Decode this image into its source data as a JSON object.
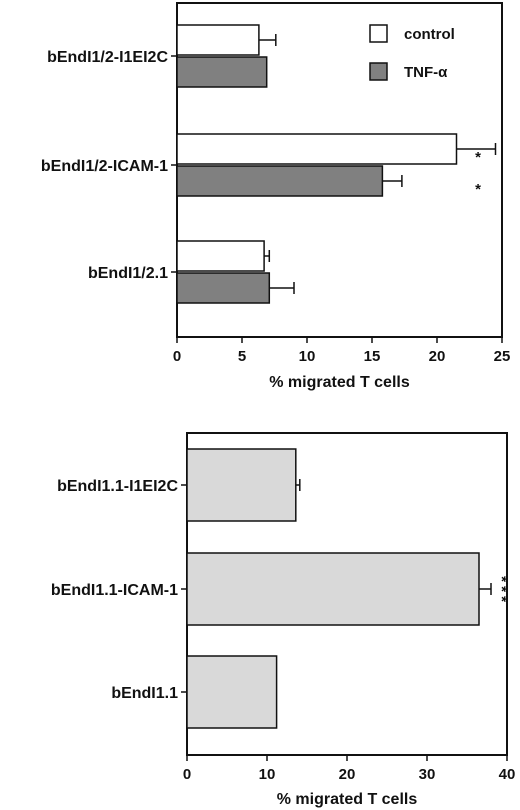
{
  "chart_data": [
    {
      "type": "bar",
      "orientation": "horizontal",
      "categories": [
        "bEndI1/2-I1EI2C",
        "bEndI1/2-ICAM-1",
        "bEndI1/2.1"
      ],
      "series": [
        {
          "name": "control",
          "values": [
            6.3,
            21.5,
            6.7
          ],
          "errors": [
            1.3,
            3.0,
            0.4
          ],
          "color": "#ffffff"
        },
        {
          "name": "TNF-α",
          "values": [
            6.9,
            15.8,
            7.1
          ],
          "errors": [
            0.0,
            1.5,
            1.9
          ],
          "color": "#808080"
        }
      ],
      "significance": [
        {
          "category": "bEndI1/2-ICAM-1",
          "series": "control",
          "marker": "*"
        },
        {
          "category": "bEndI1/2-ICAM-1",
          "series": "TNF-α",
          "marker": "*"
        }
      ],
      "xlabel": "% migrated T cells",
      "xlim": [
        0,
        25
      ],
      "xticks": [
        "0",
        "5",
        "10",
        "15",
        "20",
        "25"
      ],
      "legend_position": "top-right",
      "grid": false
    },
    {
      "type": "bar",
      "orientation": "horizontal",
      "categories": [
        "bEndI1.1-I1EI2C",
        "bEndI1.1-ICAM-1",
        "bEndI1.1"
      ],
      "series": [
        {
          "values": [
            13.6,
            36.5,
            11.2
          ],
          "errors": [
            0.5,
            1.5,
            0.0
          ],
          "color": "#d9d9d9"
        }
      ],
      "significance": [
        {
          "category": "bEndI1.1-ICAM-1",
          "marker": "***"
        }
      ],
      "xlabel": "% migrated T cells",
      "xlim": [
        0,
        40
      ],
      "xticks": [
        "0",
        "10",
        "20",
        "30",
        "40"
      ],
      "grid": false
    }
  ]
}
